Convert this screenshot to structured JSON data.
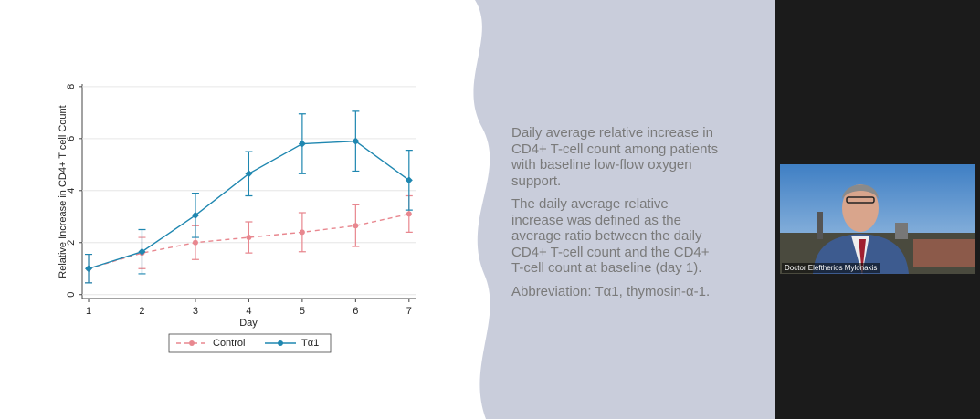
{
  "chart_data": {
    "type": "line",
    "x_label": "Day",
    "y_label": "Relative Increase in CD4+ T cell Count",
    "x": [
      1,
      2,
      3,
      4,
      5,
      6,
      7
    ],
    "series": [
      {
        "name": "Control",
        "color": "#e8878f",
        "dashed": true,
        "values": [
          1.0,
          1.6,
          2.0,
          2.2,
          2.4,
          2.65,
          3.1
        ],
        "errors": [
          0.55,
          0.6,
          0.65,
          0.6,
          0.75,
          0.8,
          0.7
        ]
      },
      {
        "name": "Tα1",
        "color": "#1f87b0",
        "dashed": false,
        "values": [
          1.0,
          1.65,
          3.05,
          4.65,
          5.8,
          5.9,
          4.4
        ],
        "errors": [
          0.55,
          0.85,
          0.85,
          0.85,
          1.15,
          1.15,
          1.15
        ]
      }
    ],
    "xlim": [
      0.88,
      7.14
    ],
    "ylim": [
      -0.15,
      8.1
    ],
    "xticks": [
      1,
      2,
      3,
      4,
      5,
      6,
      7
    ],
    "yticks": [
      0,
      2,
      4,
      6,
      8
    ],
    "grid": true
  },
  "slide_text": [
    "Daily average relative increase in CD4+ T-cell count among patients with baseline low-flow oxygen support.",
    "The daily average relative increase was defined as the average ratio between the daily CD4+ T-cell count and the CD4+ T-cell count at baseline (day 1).",
    "Abbreviation: Tα1, thymosin-α-1."
  ],
  "video": {
    "speaker": "Doctor Eleftherios Mylonakis"
  }
}
